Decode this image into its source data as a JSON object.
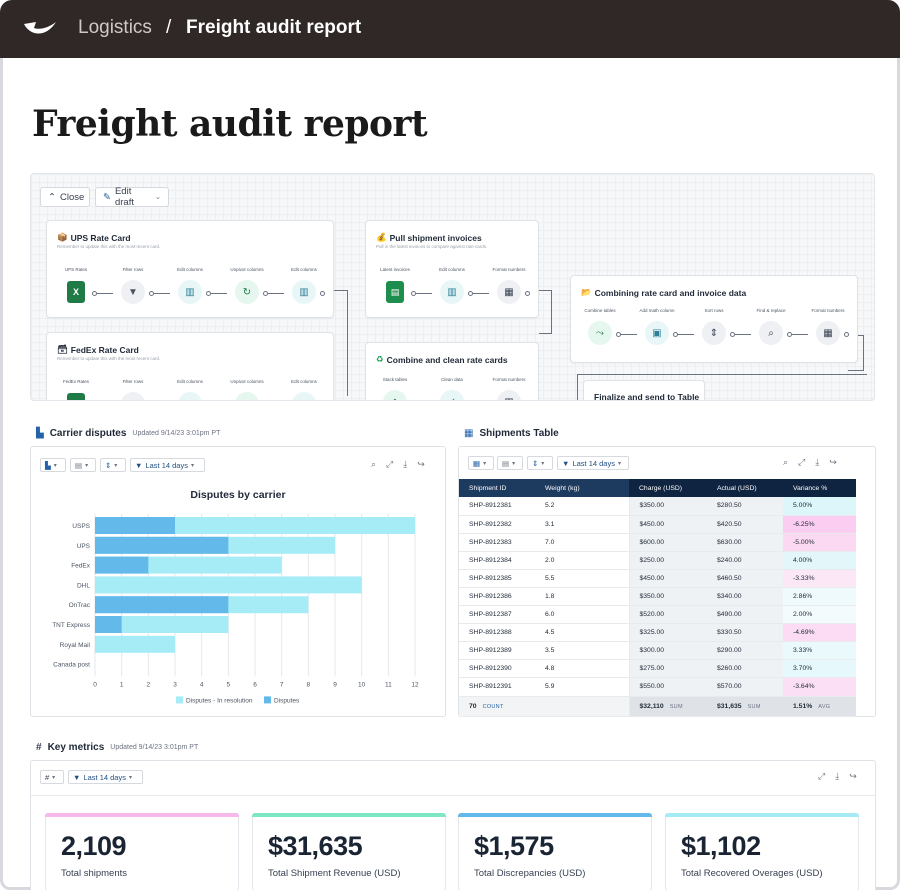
{
  "breadcrumb": {
    "app": "Logistics",
    "separator": "/",
    "current": "Freight audit report"
  },
  "page_title": "Freight audit report",
  "flow": {
    "buttons": {
      "close": "Close",
      "edit_draft": "Edit draft"
    },
    "cards": [
      {
        "title": "UPS Rate Card",
        "subtitle": "Remember to update this with the most recent card.",
        "steps": [
          "UPS Rates",
          "Filter rows",
          "Edit columns",
          "Unpivot columns",
          "Edit columns"
        ]
      },
      {
        "title": "FedEx Rate Card",
        "subtitle": "Remember to update this with the most recent card.",
        "steps": [
          "FedEx Rates",
          "Filter rows",
          "Edit columns",
          "Unpivot columns",
          "Edit columns"
        ]
      },
      {
        "title": "Pull shipment invoices",
        "subtitle": "Pull in the latest invoices to compare against rate cards.",
        "steps": [
          "Latest invoices",
          "Edit columns",
          "Format numbers"
        ]
      },
      {
        "title": "Combine and clean rate cards",
        "subtitle": "",
        "steps": [
          "Stack tables",
          "Clean data",
          "Format numbers"
        ]
      },
      {
        "title": "Combining rate card and invoice data",
        "subtitle": "",
        "steps": [
          "Combine tables",
          "Add math column",
          "Sort rows",
          "Find & replace",
          "Format numbers"
        ]
      },
      {
        "title": "Finalize and send to Table",
        "subtitle": "",
        "steps": []
      }
    ]
  },
  "carrier_disputes": {
    "title": "Carrier disputes",
    "updated": "Updated 9/14/23 3:01pm PT",
    "range_label": "Last 14 days"
  },
  "chart_data": {
    "type": "bar",
    "orientation": "horizontal",
    "stacked": false,
    "title": "Disputes by carrier",
    "categories": [
      "USPS",
      "UPS",
      "FedEx",
      "DHL",
      "OnTrac",
      "TNT Express",
      "Royal Mail",
      "Canada post"
    ],
    "series": [
      {
        "name": "Disputes - In resolution",
        "color": "#a6ecf6",
        "values": [
          12,
          9,
          7,
          10,
          8,
          5,
          3,
          0
        ]
      },
      {
        "name": "Disputes",
        "color": "#62b9ea",
        "values": [
          3,
          5,
          2,
          0,
          5,
          1,
          0,
          0
        ]
      }
    ],
    "xticks": [
      "0",
      "1",
      "2",
      "3",
      "4",
      "5",
      "6",
      "7",
      "8",
      "9",
      "10",
      "11",
      "12"
    ],
    "xlim": [
      0,
      12
    ],
    "grid": true,
    "legend_position": "bottom"
  },
  "shipments_table": {
    "title": "Shipments Table",
    "range_label": "Last 14 days",
    "columns": [
      "Shipment ID",
      "Weight (kg)",
      "Charge (USD)",
      "Actual (USD)",
      "Variance %"
    ],
    "rows": [
      {
        "id": "SHP-8912381",
        "weight": "5.2",
        "charge": "$350.00",
        "actual": "$280.50",
        "variance": "5.00%",
        "vcolor": "#ddf6fa"
      },
      {
        "id": "SHP-8912382",
        "weight": "3.1",
        "charge": "$450.00",
        "actual": "$420.50",
        "variance": "-6.25%",
        "vcolor": "#fbcdf0"
      },
      {
        "id": "SHP-8912383",
        "weight": "7.0",
        "charge": "$600.00",
        "actual": "$630.00",
        "variance": "-5.00%",
        "vcolor": "#fbd9f3"
      },
      {
        "id": "SHP-8912384",
        "weight": "2.0",
        "charge": "$250.00",
        "actual": "$240.00",
        "variance": "4.00%",
        "vcolor": "#e3f7fb"
      },
      {
        "id": "SHP-8912385",
        "weight": "5.5",
        "charge": "$450.00",
        "actual": "$460.50",
        "variance": "-3.33%",
        "vcolor": "#fce7f7"
      },
      {
        "id": "SHP-8912386",
        "weight": "1.8",
        "charge": "$350.00",
        "actual": "$340.00",
        "variance": "2.86%",
        "vcolor": "#eefafc"
      },
      {
        "id": "SHP-8912387",
        "weight": "6.0",
        "charge": "$520.00",
        "actual": "$490.00",
        "variance": "2.00%",
        "vcolor": "#f3fbfd"
      },
      {
        "id": "SHP-8912388",
        "weight": "4.5",
        "charge": "$325.00",
        "actual": "$330.50",
        "variance": "-4.69%",
        "vcolor": "#fbdcf4"
      },
      {
        "id": "SHP-8912389",
        "weight": "3.5",
        "charge": "$300.00",
        "actual": "$290.00",
        "variance": "3.33%",
        "vcolor": "#e9f9fc"
      },
      {
        "id": "SHP-8912390",
        "weight": "4.8",
        "charge": "$275.00",
        "actual": "$260.00",
        "variance": "3.70%",
        "vcolor": "#e6f8fb"
      },
      {
        "id": "SHP-8912391",
        "weight": "5.9",
        "charge": "$550.00",
        "actual": "$570.00",
        "variance": "-3.64%",
        "vcolor": "#fbe0f5"
      }
    ],
    "footer": {
      "count": "70",
      "count_label": "COUNT",
      "charge": "$32,110",
      "charge_label": "SUM",
      "actual": "$31,635",
      "actual_label": "SUM",
      "variance": "1.51%",
      "variance_label": "AVG"
    }
  },
  "key_metrics": {
    "title": "Key metrics",
    "updated": "Updated 9/14/23 3:01pm PT",
    "range_label": "Last 14 days",
    "cards": [
      {
        "value": "2,109",
        "label": "Total shipments",
        "color": "#f7b8ea"
      },
      {
        "value": "$31,635",
        "label": "Total Shipment Revenue (USD)",
        "color": "#7ee6c4"
      },
      {
        "value": "$1,575",
        "label": "Total Discrepancies (USD)",
        "color": "#62b9ea"
      },
      {
        "value": "$1,102",
        "label": "Total Recovered Overages (USD)",
        "color": "#a6ecf6"
      }
    ]
  }
}
